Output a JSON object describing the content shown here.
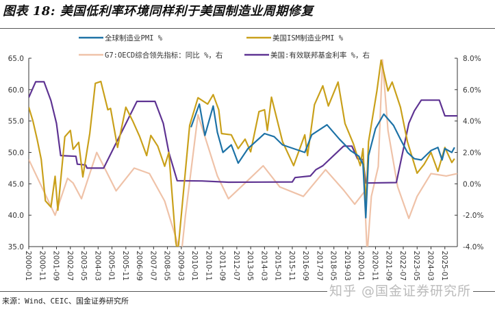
{
  "title": "图表 18: 美国低利率环境同样利于美国制造业周期修复",
  "source": "来源：Wind、CEIC、国金证券研究所",
  "watermark": "知乎 @国金证券研究所",
  "chart_data": {
    "type": "line",
    "title": "",
    "x_range": [
      "2000-01",
      "2025-10"
    ],
    "x_ticks": [
      "2000-01",
      "2000-11",
      "2001-09",
      "2002-07",
      "2003-05",
      "2004-03",
      "2005-01",
      "2005-11",
      "2006-09",
      "2007-07",
      "2008-05",
      "2009-03",
      "2010-01",
      "2010-11",
      "2011-09",
      "2012-07",
      "2013-05",
      "2014-03",
      "2015-01",
      "2015-11",
      "2016-09",
      "2017-07",
      "2018-05",
      "2019-03",
      "2020-01",
      "2020-11",
      "2021-09",
      "2022-07",
      "2023-05",
      "2024-03",
      "2025-01"
    ],
    "y_left": {
      "range": [
        35,
        65
      ],
      "ticks": [
        "65.0",
        "60.0",
        "55.0",
        "50.0",
        "45.0",
        "40.0",
        "35.0"
      ]
    },
    "y_right": {
      "range": [
        -4,
        8
      ],
      "ticks": [
        "8.0%",
        "6.0%",
        "4.0%",
        "2.0%",
        "0.0%",
        "-2.0%",
        "-4.0%"
      ]
    },
    "grid": false,
    "legend_position": "top",
    "series": [
      {
        "name": "全球制造业PMI %",
        "axis": "left",
        "color": "#1d72a6",
        "points": [
          [
            "2009-10",
            54.0
          ],
          [
            "2010-04",
            57.7
          ],
          [
            "2010-08",
            52.7
          ],
          [
            "2011-02",
            57.4
          ],
          [
            "2011-05",
            53.2
          ],
          [
            "2011-09",
            50.0
          ],
          [
            "2012-03",
            51.2
          ],
          [
            "2012-08",
            48.3
          ],
          [
            "2013-03",
            50.6
          ],
          [
            "2014-03",
            53.0
          ],
          [
            "2014-10",
            52.5
          ],
          [
            "2015-04",
            51.2
          ],
          [
            "2016-08",
            50.0
          ],
          [
            "2017-01",
            52.8
          ],
          [
            "2017-12",
            54.4
          ],
          [
            "2018-09",
            52.1
          ],
          [
            "2019-05",
            50.3
          ],
          [
            "2019-11",
            49.4
          ],
          [
            "2020-02",
            48.1
          ],
          [
            "2020-04",
            39.6
          ],
          [
            "2020-06",
            49.5
          ],
          [
            "2020-11",
            53.8
          ],
          [
            "2021-05",
            56.1
          ],
          [
            "2021-12",
            54.3
          ],
          [
            "2022-05",
            52.1
          ],
          [
            "2022-10",
            50.0
          ],
          [
            "2023-03",
            49.0
          ],
          [
            "2023-08",
            48.8
          ],
          [
            "2024-03",
            50.3
          ],
          [
            "2024-08",
            50.8
          ],
          [
            "2024-11",
            48.8
          ],
          [
            "2025-01",
            50.6
          ],
          [
            "2025-06",
            50.0
          ],
          [
            "2025-08",
            50.8
          ]
        ]
      },
      {
        "name": "美国ISM制造业PMI %",
        "axis": "left",
        "color": "#c9a01a",
        "points": [
          [
            "2000-01",
            57.2
          ],
          [
            "2000-04",
            55.0
          ],
          [
            "2000-07",
            52.1
          ],
          [
            "2000-10",
            48.9
          ],
          [
            "2001-01",
            42.3
          ],
          [
            "2001-05",
            41.3
          ],
          [
            "2001-08",
            46.2
          ],
          [
            "2001-10",
            40.8
          ],
          [
            "2002-03",
            52.5
          ],
          [
            "2002-07",
            53.5
          ],
          [
            "2002-09",
            50.5
          ],
          [
            "2003-01",
            51.6
          ],
          [
            "2003-04",
            46.1
          ],
          [
            "2003-09",
            53.0
          ],
          [
            "2004-01",
            61.0
          ],
          [
            "2004-05",
            61.3
          ],
          [
            "2004-10",
            56.8
          ],
          [
            "2004-12",
            57.0
          ],
          [
            "2005-05",
            50.8
          ],
          [
            "2005-11",
            57.2
          ],
          [
            "2006-04",
            55.0
          ],
          [
            "2006-09",
            52.5
          ],
          [
            "2007-02",
            49.5
          ],
          [
            "2007-05",
            52.7
          ],
          [
            "2007-10",
            51.0
          ],
          [
            "2008-03",
            47.8
          ],
          [
            "2008-06",
            50.0
          ],
          [
            "2008-11",
            35.8
          ],
          [
            "2008-12",
            34.5
          ],
          [
            "2009-01",
            35.3
          ],
          [
            "2009-09",
            54.3
          ],
          [
            "2010-03",
            58.7
          ],
          [
            "2010-10",
            57.7
          ],
          [
            "2011-02",
            59.2
          ],
          [
            "2011-06",
            56.8
          ],
          [
            "2011-08",
            53.0
          ],
          [
            "2012-03",
            52.8
          ],
          [
            "2012-08",
            50.6
          ],
          [
            "2013-01",
            52.1
          ],
          [
            "2013-05",
            50.1
          ],
          [
            "2013-11",
            56.5
          ],
          [
            "2014-03",
            56.8
          ],
          [
            "2014-05",
            53.5
          ],
          [
            "2014-08",
            58.8
          ],
          [
            "2015-04",
            51.7
          ],
          [
            "2015-12",
            47.9
          ],
          [
            "2016-08",
            52.8
          ],
          [
            "2016-10",
            49.5
          ],
          [
            "2017-03",
            57.6
          ],
          [
            "2017-09",
            60.6
          ],
          [
            "2018-01",
            57.4
          ],
          [
            "2018-08",
            61.2
          ],
          [
            "2019-01",
            54.6
          ],
          [
            "2019-07",
            51.4
          ],
          [
            "2019-12",
            47.9
          ],
          [
            "2020-02",
            50.6
          ],
          [
            "2020-04",
            41.5
          ],
          [
            "2020-06",
            51.7
          ],
          [
            "2020-12",
            59.8
          ],
          [
            "2021-03",
            64.7
          ],
          [
            "2021-08",
            59.8
          ],
          [
            "2021-11",
            61.2
          ],
          [
            "2022-05",
            57.2
          ],
          [
            "2022-10",
            51.7
          ],
          [
            "2023-05",
            46.7
          ],
          [
            "2023-10",
            48.1
          ],
          [
            "2024-03",
            50.0
          ],
          [
            "2024-08",
            47.0
          ],
          [
            "2025-01",
            50.8
          ],
          [
            "2025-06",
            48.4
          ],
          [
            "2025-08",
            49.0
          ]
        ]
      },
      {
        "name": "G7:OECD综合领先指标：同比 %，右",
        "axis": "right",
        "color": "#efc2a8",
        "points": [
          [
            "2000-01",
            1.55
          ],
          [
            "2000-12",
            -0.5
          ],
          [
            "2001-08",
            -2.0
          ],
          [
            "2002-05",
            0.35
          ],
          [
            "2002-09",
            0.05
          ],
          [
            "2003-03",
            -0.95
          ],
          [
            "2004-02",
            2.0
          ],
          [
            "2005-04",
            -0.45
          ],
          [
            "2006-05",
            1.0
          ],
          [
            "2007-04",
            0.65
          ],
          [
            "2008-03",
            -1.1
          ],
          [
            "2008-12",
            -3.7
          ],
          [
            "2009-03",
            -4.5
          ],
          [
            "2009-06",
            -2.0
          ],
          [
            "2010-03",
            4.4
          ],
          [
            "2011-05",
            0.5
          ],
          [
            "2012-01",
            -0.95
          ],
          [
            "2013-01",
            0.05
          ],
          [
            "2014-02",
            1.15
          ],
          [
            "2015-02",
            -0.2
          ],
          [
            "2016-07",
            -0.8
          ],
          [
            "2017-11",
            0.9
          ],
          [
            "2018-12",
            -0.4
          ],
          [
            "2019-08",
            -1.3
          ],
          [
            "2020-03",
            -0.5
          ],
          [
            "2020-05",
            -4.5
          ],
          [
            "2020-08",
            -0.8
          ],
          [
            "2021-01",
            1.1
          ],
          [
            "2021-04",
            7.9
          ],
          [
            "2021-08",
            3.4
          ],
          [
            "2022-03",
            -0.2
          ],
          [
            "2022-11",
            -2.2
          ],
          [
            "2023-05",
            -0.8
          ],
          [
            "2024-03",
            0.65
          ],
          [
            "2025-02",
            0.5
          ],
          [
            "2025-10",
            0.65
          ]
        ]
      },
      {
        "name": "美国:有效联邦基金利率 %，右",
        "axis": "right",
        "color": "#5e3392",
        "points": [
          [
            "2000-01",
            5.5
          ],
          [
            "2000-06",
            6.5
          ],
          [
            "2000-12",
            6.5
          ],
          [
            "2001-05",
            5.3
          ],
          [
            "2001-09",
            3.85
          ],
          [
            "2001-12",
            1.8
          ],
          [
            "2002-11",
            1.75
          ],
          [
            "2002-12",
            1.25
          ],
          [
            "2003-06",
            1.2
          ],
          [
            "2003-07",
            1.0
          ],
          [
            "2004-07",
            1.0
          ],
          [
            "2006-07",
            5.25
          ],
          [
            "2007-08",
            5.25
          ],
          [
            "2008-02",
            3.85
          ],
          [
            "2008-06",
            2.0
          ],
          [
            "2008-12",
            0.2
          ],
          [
            "2010-06",
            0.18
          ],
          [
            "2012-01",
            0.1
          ],
          [
            "2015-11",
            0.12
          ],
          [
            "2016-01",
            0.4
          ],
          [
            "2016-12",
            0.5
          ],
          [
            "2017-04",
            0.9
          ],
          [
            "2017-09",
            1.15
          ],
          [
            "2018-06",
            1.9
          ],
          [
            "2018-12",
            2.4
          ],
          [
            "2019-06",
            2.4
          ],
          [
            "2019-10",
            1.6
          ],
          [
            "2020-02",
            1.55
          ],
          [
            "2020-04",
            0.05
          ],
          [
            "2022-02",
            0.08
          ],
          [
            "2022-11",
            3.85
          ],
          [
            "2023-03",
            4.65
          ],
          [
            "2023-08",
            5.33
          ],
          [
            "2024-09",
            5.33
          ],
          [
            "2025-01",
            4.33
          ],
          [
            "2025-10",
            4.33
          ]
        ]
      }
    ]
  }
}
